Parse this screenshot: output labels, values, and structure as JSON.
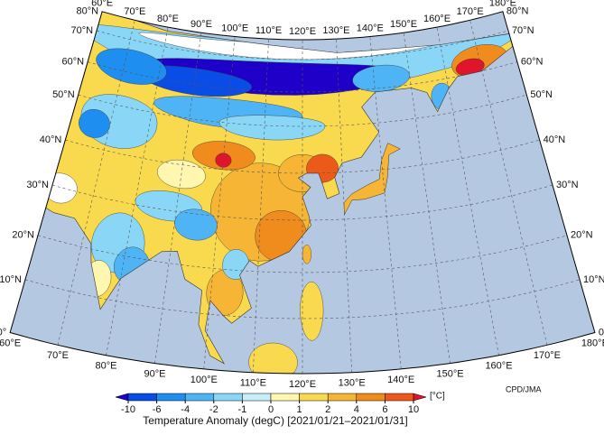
{
  "map": {
    "lat_labels": [
      "0°",
      "10°N",
      "20°N",
      "30°N",
      "40°N",
      "50°N",
      "60°N",
      "70°N",
      "80°N"
    ],
    "lon_labels": [
      "60°E",
      "70°E",
      "80°E",
      "90°E",
      "100°E",
      "110°E",
      "120°E",
      "130°E",
      "140°E",
      "150°E",
      "160°E",
      "170°E",
      "180°E"
    ]
  },
  "colorbar": {
    "ticks": [
      -10,
      -6,
      -4,
      -2,
      -1,
      0,
      1,
      2,
      4,
      6,
      10
    ],
    "colors": [
      "#1e00c8",
      "#0a4ce6",
      "#1e8ef0",
      "#4fb4f5",
      "#8ad6f7",
      "#c8eefb",
      "#fff6b0",
      "#f9d94e",
      "#f6b534",
      "#f08b1e",
      "#ec5a1a",
      "#e0142a"
    ],
    "unit": "[°C]",
    "title": "Temperature Anomaly (degC) [2021/01/21–2021/01/31]"
  },
  "credit": "CPD/JMA"
}
